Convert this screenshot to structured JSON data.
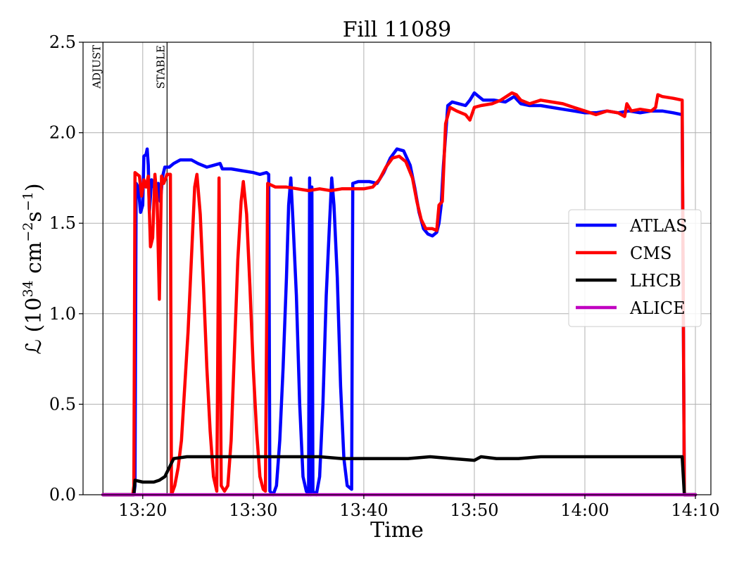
{
  "chart_data": {
    "type": "line",
    "title": "Fill 11089",
    "xlabel": "Time",
    "ylabel_main": "ℒ (10",
    "ylabel_exp1": "34",
    "ylabel_mid": " cm",
    "ylabel_exp2": "−2",
    "ylabel_mid2": "s",
    "ylabel_exp3": "−1",
    "ylabel_end": ")",
    "xlim": [
      "13:14:36",
      "14:11:24"
    ],
    "ylim": [
      0,
      2.5
    ],
    "grid": true,
    "legend_position": "center-right",
    "x_ticks": [
      "13:20",
      "13:30",
      "13:40",
      "13:50",
      "14:00",
      "14:10"
    ],
    "y_ticks": [
      "0.0",
      "0.5",
      "1.0",
      "1.5",
      "2.0",
      "2.5"
    ],
    "y_tick_values": [
      0,
      0.5,
      1.0,
      1.5,
      2.0,
      2.5
    ],
    "markers": [
      {
        "label": "ADJUST",
        "time": "13:16:24"
      },
      {
        "label": "STABLE",
        "time": "13:22:12"
      }
    ],
    "series": [
      {
        "name": "ATLAS",
        "color": "#0000ff",
        "points": [
          [
            "13:16:24",
            0.0
          ],
          [
            "13:19:12",
            0.0
          ],
          [
            "13:19:18",
            0.05
          ],
          [
            "13:19:24",
            1.72
          ],
          [
            "13:19:36",
            1.7
          ],
          [
            "13:19:48",
            1.56
          ],
          [
            "13:20:00",
            1.6
          ],
          [
            "13:20:06",
            1.87
          ],
          [
            "13:20:18",
            1.88
          ],
          [
            "13:20:24",
            1.91
          ],
          [
            "13:20:30",
            1.82
          ],
          [
            "13:20:36",
            1.56
          ],
          [
            "13:20:48",
            1.74
          ],
          [
            "13:21:00",
            1.71
          ],
          [
            "13:21:12",
            1.65
          ],
          [
            "13:21:24",
            1.72
          ],
          [
            "13:21:36",
            1.62
          ],
          [
            "13:21:48",
            1.76
          ],
          [
            "13:22:00",
            1.81
          ],
          [
            "13:22:24",
            1.81
          ],
          [
            "13:22:48",
            1.83
          ],
          [
            "13:23:24",
            1.85
          ],
          [
            "13:24:24",
            1.85
          ],
          [
            "13:25:00",
            1.83
          ],
          [
            "13:25:48",
            1.81
          ],
          [
            "13:26:24",
            1.82
          ],
          [
            "13:27:00",
            1.83
          ],
          [
            "13:27:12",
            1.8
          ],
          [
            "13:28:00",
            1.8
          ],
          [
            "13:29:00",
            1.79
          ],
          [
            "13:30:00",
            1.78
          ],
          [
            "13:30:36",
            1.77
          ],
          [
            "13:31:12",
            1.78
          ],
          [
            "13:31:24",
            1.77
          ],
          [
            "13:31:30",
            0.02
          ],
          [
            "13:31:48",
            0.0
          ],
          [
            "13:32:06",
            0.05
          ],
          [
            "13:32:24",
            0.3
          ],
          [
            "13:32:42",
            0.7
          ],
          [
            "13:33:00",
            1.2
          ],
          [
            "13:33:12",
            1.6
          ],
          [
            "13:33:24",
            1.75
          ],
          [
            "13:33:36",
            1.5
          ],
          [
            "13:33:54",
            1.1
          ],
          [
            "13:34:12",
            0.5
          ],
          [
            "13:34:30",
            0.1
          ],
          [
            "13:34:48",
            0.02
          ],
          [
            "13:35:00",
            0.0
          ],
          [
            "13:35:06",
            1.75
          ],
          [
            "13:35:12",
            0.0
          ],
          [
            "13:35:18",
            1.7
          ],
          [
            "13:35:24",
            0.02
          ],
          [
            "13:35:42",
            0.0
          ],
          [
            "13:36:00",
            0.1
          ],
          [
            "13:36:18",
            0.5
          ],
          [
            "13:36:36",
            1.1
          ],
          [
            "13:36:54",
            1.5
          ],
          [
            "13:37:06",
            1.75
          ],
          [
            "13:37:18",
            1.6
          ],
          [
            "13:37:36",
            1.2
          ],
          [
            "13:37:54",
            0.6
          ],
          [
            "13:38:12",
            0.2
          ],
          [
            "13:38:30",
            0.05
          ],
          [
            "13:38:54",
            0.03
          ],
          [
            "13:39:00",
            1.72
          ],
          [
            "13:39:30",
            1.73
          ],
          [
            "13:40:30",
            1.73
          ],
          [
            "13:41:12",
            1.72
          ],
          [
            "13:41:48",
            1.78
          ],
          [
            "13:42:24",
            1.86
          ],
          [
            "13:43:00",
            1.91
          ],
          [
            "13:43:36",
            1.9
          ],
          [
            "13:44:12",
            1.82
          ],
          [
            "13:44:36",
            1.7
          ],
          [
            "13:45:00",
            1.56
          ],
          [
            "13:45:24",
            1.47
          ],
          [
            "13:45:48",
            1.44
          ],
          [
            "13:46:12",
            1.43
          ],
          [
            "13:46:36",
            1.45
          ],
          [
            "13:46:48",
            1.5
          ],
          [
            "13:47:00",
            1.6
          ],
          [
            "13:47:12",
            1.82
          ],
          [
            "13:47:36",
            2.15
          ],
          [
            "13:48:00",
            2.17
          ],
          [
            "13:48:36",
            2.16
          ],
          [
            "13:49:12",
            2.15
          ],
          [
            "13:49:36",
            2.18
          ],
          [
            "13:50:00",
            2.22
          ],
          [
            "13:50:24",
            2.2
          ],
          [
            "13:50:48",
            2.18
          ],
          [
            "13:51:48",
            2.18
          ],
          [
            "13:52:48",
            2.17
          ],
          [
            "13:53:36",
            2.2
          ],
          [
            "13:54:12",
            2.16
          ],
          [
            "13:55:00",
            2.15
          ],
          [
            "13:56:00",
            2.15
          ],
          [
            "13:57:00",
            2.14
          ],
          [
            "13:58:00",
            2.13
          ],
          [
            "13:59:00",
            2.12
          ],
          [
            "14:00:00",
            2.11
          ],
          [
            "14:01:00",
            2.11
          ],
          [
            "14:02:00",
            2.12
          ],
          [
            "14:03:00",
            2.11
          ],
          [
            "14:04:00",
            2.12
          ],
          [
            "14:05:00",
            2.11
          ],
          [
            "14:06:00",
            2.12
          ],
          [
            "14:07:00",
            2.12
          ],
          [
            "14:08:00",
            2.11
          ],
          [
            "14:08:48",
            2.1
          ],
          [
            "14:09:00",
            0.0
          ],
          [
            "14:10:00",
            0.0
          ]
        ]
      },
      {
        "name": "CMS",
        "color": "#ff0000",
        "points": [
          [
            "13:16:24",
            0.0
          ],
          [
            "13:19:06",
            0.0
          ],
          [
            "13:19:12",
            0.05
          ],
          [
            "13:19:18",
            1.78
          ],
          [
            "13:19:42",
            1.76
          ],
          [
            "13:19:54",
            1.65
          ],
          [
            "13:20:06",
            1.74
          ],
          [
            "13:20:18",
            1.7
          ],
          [
            "13:20:30",
            1.76
          ],
          [
            "13:20:42",
            1.37
          ],
          [
            "13:20:54",
            1.42
          ],
          [
            "13:21:06",
            1.77
          ],
          [
            "13:21:18",
            1.63
          ],
          [
            "13:21:30",
            1.08
          ],
          [
            "13:21:42",
            1.76
          ],
          [
            "13:21:54",
            1.72
          ],
          [
            "13:22:12",
            1.77
          ],
          [
            "13:22:30",
            1.77
          ],
          [
            "13:22:36",
            0.0
          ],
          [
            "13:22:54",
            0.05
          ],
          [
            "13:23:12",
            0.15
          ],
          [
            "13:23:30",
            0.3
          ],
          [
            "13:23:48",
            0.6
          ],
          [
            "13:24:06",
            0.9
          ],
          [
            "13:24:24",
            1.3
          ],
          [
            "13:24:42",
            1.7
          ],
          [
            "13:24:54",
            1.77
          ],
          [
            "13:25:12",
            1.55
          ],
          [
            "13:25:30",
            1.15
          ],
          [
            "13:25:48",
            0.7
          ],
          [
            "13:26:06",
            0.35
          ],
          [
            "13:26:24",
            0.1
          ],
          [
            "13:26:42",
            0.02
          ],
          [
            "13:26:54",
            1.75
          ],
          [
            "13:27:06",
            0.05
          ],
          [
            "13:27:24",
            0.02
          ],
          [
            "13:27:42",
            0.05
          ],
          [
            "13:28:00",
            0.3
          ],
          [
            "13:28:18",
            0.8
          ],
          [
            "13:28:36",
            1.3
          ],
          [
            "13:28:54",
            1.62
          ],
          [
            "13:29:06",
            1.73
          ],
          [
            "13:29:24",
            1.55
          ],
          [
            "13:29:42",
            1.15
          ],
          [
            "13:30:00",
            0.7
          ],
          [
            "13:30:18",
            0.35
          ],
          [
            "13:30:36",
            0.1
          ],
          [
            "13:30:54",
            0.03
          ],
          [
            "13:31:06",
            0.02
          ],
          [
            "13:31:18",
            1.72
          ],
          [
            "13:32:00",
            1.7
          ],
          [
            "13:33:00",
            1.7
          ],
          [
            "13:34:00",
            1.69
          ],
          [
            "13:35:00",
            1.68
          ],
          [
            "13:36:00",
            1.69
          ],
          [
            "13:37:00",
            1.68
          ],
          [
            "13:38:00",
            1.69
          ],
          [
            "13:39:00",
            1.69
          ],
          [
            "13:40:00",
            1.69
          ],
          [
            "13:40:48",
            1.7
          ],
          [
            "13:41:24",
            1.74
          ],
          [
            "13:42:00",
            1.81
          ],
          [
            "13:42:36",
            1.86
          ],
          [
            "13:43:12",
            1.87
          ],
          [
            "13:43:48",
            1.84
          ],
          [
            "13:44:24",
            1.75
          ],
          [
            "13:44:48",
            1.62
          ],
          [
            "13:45:12",
            1.52
          ],
          [
            "13:45:36",
            1.47
          ],
          [
            "13:46:12",
            1.47
          ],
          [
            "13:46:36",
            1.46
          ],
          [
            "13:46:48",
            1.6
          ],
          [
            "13:47:06",
            1.62
          ],
          [
            "13:47:24",
            2.05
          ],
          [
            "13:47:48",
            2.14
          ],
          [
            "13:48:24",
            2.12
          ],
          [
            "13:49:12",
            2.1
          ],
          [
            "13:49:36",
            2.07
          ],
          [
            "13:50:00",
            2.14
          ],
          [
            "13:50:36",
            2.15
          ],
          [
            "13:51:36",
            2.16
          ],
          [
            "13:52:24",
            2.18
          ],
          [
            "13:53:24",
            2.22
          ],
          [
            "13:53:48",
            2.21
          ],
          [
            "13:54:12",
            2.18
          ],
          [
            "13:55:00",
            2.16
          ],
          [
            "13:56:00",
            2.18
          ],
          [
            "13:57:00",
            2.17
          ],
          [
            "13:58:00",
            2.16
          ],
          [
            "13:59:00",
            2.14
          ],
          [
            "14:00:00",
            2.12
          ],
          [
            "14:01:00",
            2.1
          ],
          [
            "14:02:00",
            2.12
          ],
          [
            "14:03:00",
            2.11
          ],
          [
            "14:03:36",
            2.09
          ],
          [
            "14:03:48",
            2.16
          ],
          [
            "14:04:12",
            2.12
          ],
          [
            "14:05:00",
            2.13
          ],
          [
            "14:06:00",
            2.12
          ],
          [
            "14:06:24",
            2.14
          ],
          [
            "14:06:36",
            2.21
          ],
          [
            "14:07:00",
            2.2
          ],
          [
            "14:08:00",
            2.19
          ],
          [
            "14:08:48",
            2.18
          ],
          [
            "14:09:00",
            0.0
          ],
          [
            "14:10:00",
            0.0
          ]
        ]
      },
      {
        "name": "LHCB",
        "color": "#000000",
        "points": [
          [
            "13:16:24",
            0.0
          ],
          [
            "13:19:12",
            0.0
          ],
          [
            "13:19:18",
            0.08
          ],
          [
            "13:20:00",
            0.07
          ],
          [
            "13:21:00",
            0.07
          ],
          [
            "13:21:30",
            0.08
          ],
          [
            "13:22:00",
            0.1
          ],
          [
            "13:22:24",
            0.15
          ],
          [
            "13:22:48",
            0.2
          ],
          [
            "13:24:00",
            0.21
          ],
          [
            "13:26:00",
            0.21
          ],
          [
            "13:28:00",
            0.21
          ],
          [
            "13:30:00",
            0.21
          ],
          [
            "13:32:00",
            0.21
          ],
          [
            "13:34:00",
            0.21
          ],
          [
            "13:36:00",
            0.21
          ],
          [
            "13:38:00",
            0.2
          ],
          [
            "13:40:00",
            0.2
          ],
          [
            "13:42:00",
            0.2
          ],
          [
            "13:44:00",
            0.2
          ],
          [
            "13:46:00",
            0.21
          ],
          [
            "13:48:00",
            0.2
          ],
          [
            "13:50:00",
            0.19
          ],
          [
            "13:50:36",
            0.21
          ],
          [
            "13:52:00",
            0.2
          ],
          [
            "13:54:00",
            0.2
          ],
          [
            "13:56:00",
            0.21
          ],
          [
            "13:58:00",
            0.21
          ],
          [
            "14:00:00",
            0.21
          ],
          [
            "14:02:00",
            0.21
          ],
          [
            "14:04:00",
            0.21
          ],
          [
            "14:06:00",
            0.21
          ],
          [
            "14:08:00",
            0.21
          ],
          [
            "14:08:48",
            0.21
          ],
          [
            "14:09:00",
            0.0
          ],
          [
            "14:10:00",
            0.0
          ]
        ]
      },
      {
        "name": "ALICE",
        "color": "#c000c0",
        "points": [
          [
            "13:16:24",
            0.0
          ],
          [
            "14:10:00",
            0.0
          ]
        ]
      }
    ]
  }
}
